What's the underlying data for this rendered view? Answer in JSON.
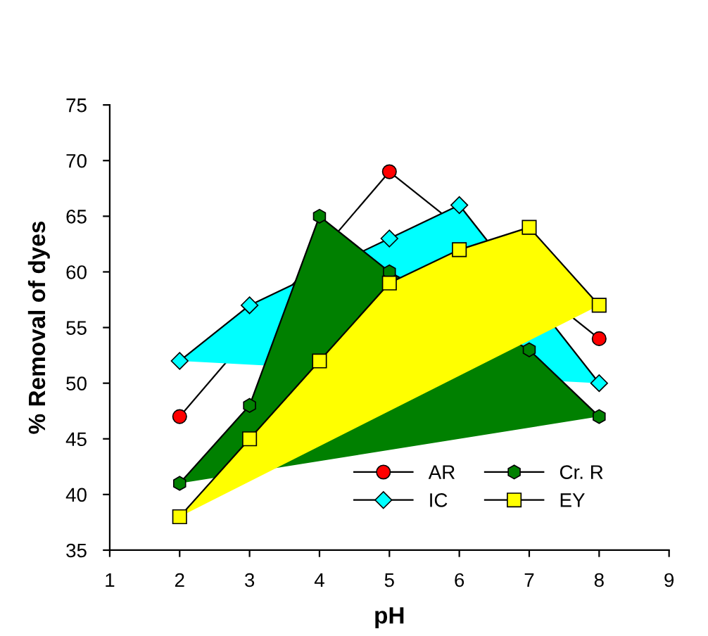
{
  "chart_data": {
    "type": "line",
    "xlabel": "pH",
    "ylabel": "% Removal of dyes",
    "x": [
      2,
      3,
      4,
      5,
      6,
      7,
      8
    ],
    "series": [
      {
        "name": "AR",
        "color": "#ff0000",
        "marker": "circle",
        "values": [
          47,
          null,
          null,
          69,
          null,
          null,
          54
        ]
      },
      {
        "name": "IC",
        "type": "area",
        "color": "#00ffff",
        "marker": "diamond",
        "values": [
          52,
          57,
          null,
          63,
          66,
          null,
          50
        ]
      },
      {
        "name": "Cr. R",
        "type": "area",
        "color": "#008000",
        "values": [
          41,
          48,
          65,
          60,
          null,
          53,
          47
        ]
      },
      {
        "name": "EY",
        "type": "area",
        "color": "#ffff00",
        "marker": "square",
        "values": [
          38,
          45,
          52,
          59,
          62,
          64,
          57
        ]
      }
    ],
    "xlim": [
      1,
      9
    ],
    "xticks": [
      1,
      2,
      3,
      4,
      5,
      6,
      7,
      8,
      9
    ],
    "ylim": [
      35,
      75
    ],
    "yticks": [
      35,
      40,
      45,
      50,
      55,
      60,
      65,
      70,
      75
    ],
    "grid": false,
    "legend": "bottom"
  }
}
